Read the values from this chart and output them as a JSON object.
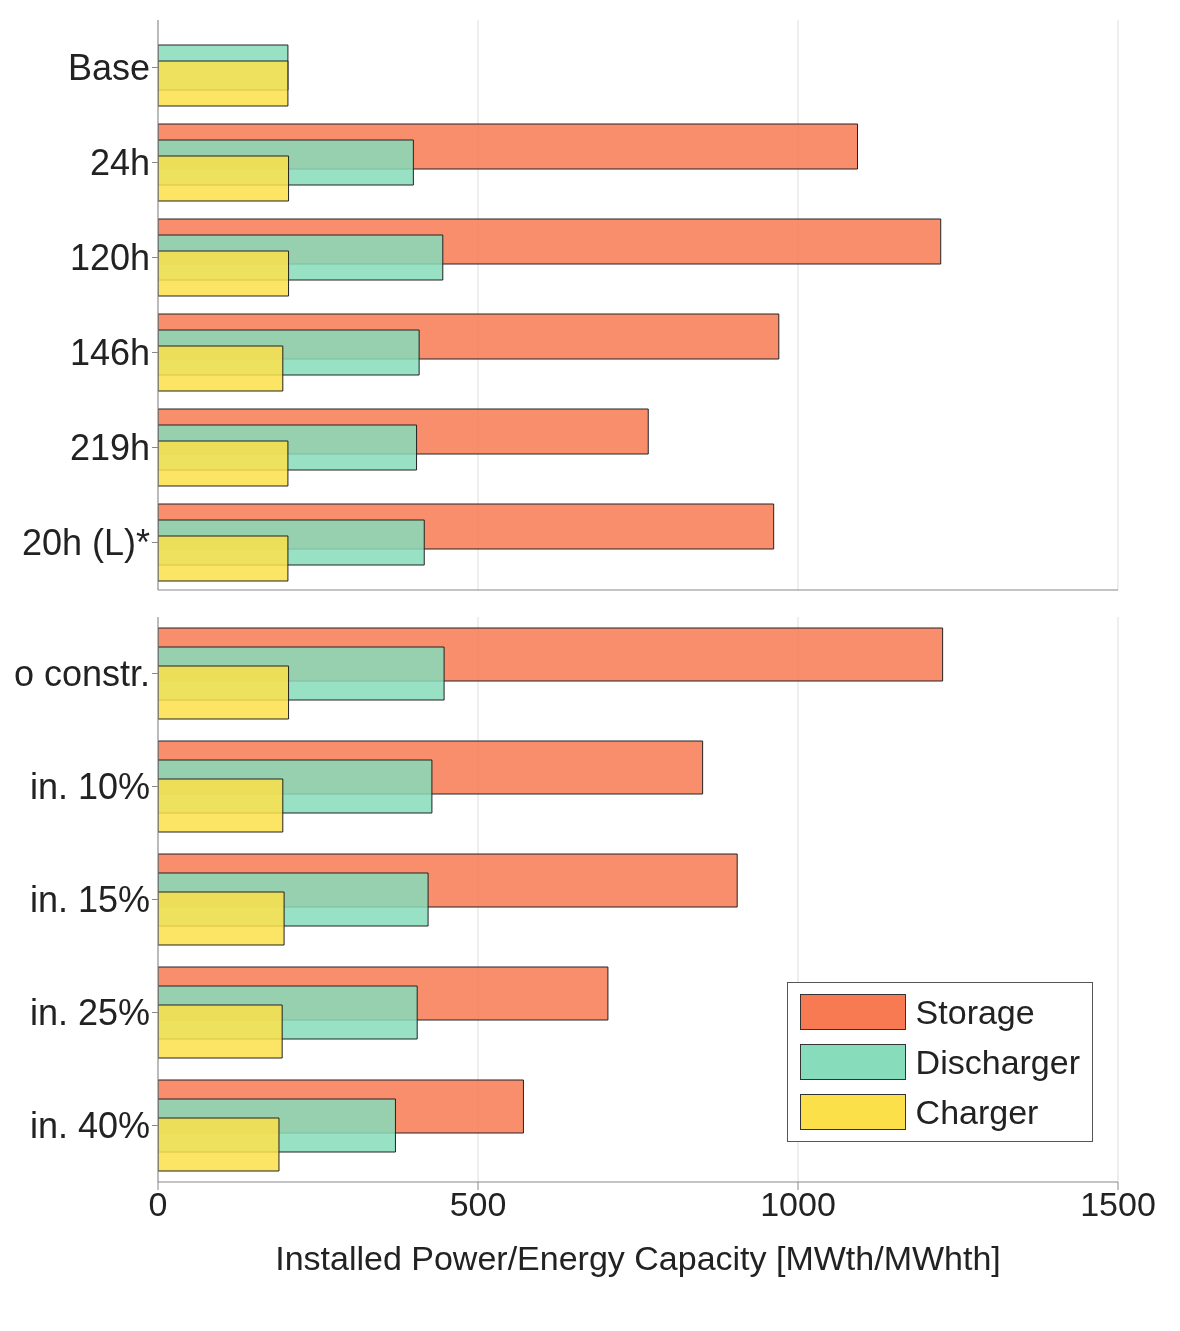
{
  "chart_data": [
    {
      "type": "bar",
      "orientation": "horizontal",
      "categories": [
        "Base",
        "24h",
        "120h",
        "146h",
        "219h",
        "20h (L)*"
      ],
      "series": [
        {
          "color": "#f77a52",
          "values": [
            null,
            1093,
            1223,
            970,
            766,
            962
          ]
        },
        {
          "color": "#86dcbb",
          "values": [
            203,
            399,
            445,
            408,
            404,
            416
          ]
        },
        {
          "color": "#fce04a",
          "values": [
            203,
            204,
            204,
            195,
            203,
            203
          ]
        }
      ],
      "xlim": [
        0,
        1500
      ],
      "xticks": [
        0,
        500,
        1000,
        1500
      ],
      "grid": "x",
      "tick_labels": "y"
    },
    {
      "type": "bar",
      "orientation": "horizontal",
      "categories": [
        "o constr.",
        "in. 10%",
        "in. 15%",
        "in. 25%",
        "in. 40%"
      ],
      "series": [
        {
          "name": "Storage",
          "color": "#f77a52",
          "values": [
            1226,
            851,
            905,
            703,
            571
          ]
        },
        {
          "name": "Discharger",
          "color": "#86dcbb",
          "values": [
            447,
            428,
            422,
            405,
            371
          ]
        },
        {
          "name": "Charger",
          "color": "#fce04a",
          "values": [
            204,
            195,
            197,
            194,
            189
          ]
        }
      ],
      "xlim": [
        0,
        1500
      ],
      "xticks": [
        0,
        500,
        1000,
        1500
      ],
      "grid": "x",
      "xlabel": "Installed Power/Energy Capacity [MWth/MWhth]",
      "legend": "bottom right"
    }
  ]
}
